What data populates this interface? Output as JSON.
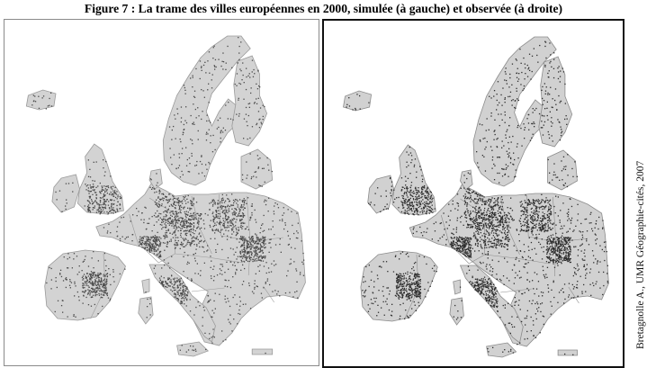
{
  "title": "Figure 7 : La trame des villes européennes en 2000, simulée (à gauche) et observée (à droite)",
  "credit": "Bretagnolle A., UMR Géographie-cités, 2007",
  "maps": [
    {
      "id": "simulated",
      "label_position": "left",
      "land_color": "#d3d3d3",
      "border_color": "#9a9a9a",
      "dot_color": "#4a4a4a"
    },
    {
      "id": "observed",
      "label_position": "right",
      "land_color": "#d1d1d1",
      "border_color": "#8c8c8c",
      "dot_color": "#2e2e2e"
    }
  ]
}
